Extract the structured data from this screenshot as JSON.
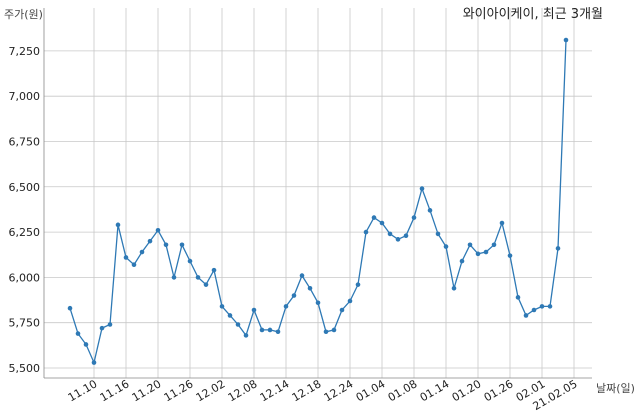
{
  "chart_data": {
    "type": "line",
    "title": "와이아이케이, 최근 3개월",
    "ylabel": "주가(원)",
    "xlabel": "날짜(일)",
    "ylim": [
      5500,
      7350
    ],
    "yticks": [
      5500,
      5750,
      6000,
      6250,
      6500,
      6750,
      7000,
      7250
    ],
    "ytick_labels": [
      "5,500",
      "5,750",
      "6,000",
      "6,250",
      "6,500",
      "6,750",
      "7,000",
      "7,250"
    ],
    "xtick_labels": [
      {
        "index": 3,
        "label": "11.10"
      },
      {
        "index": 7,
        "label": "11.16"
      },
      {
        "index": 11,
        "label": "11.20"
      },
      {
        "index": 15,
        "label": "11.26"
      },
      {
        "index": 19,
        "label": "12.02"
      },
      {
        "index": 23,
        "label": "12.08"
      },
      {
        "index": 27,
        "label": "12.14"
      },
      {
        "index": 31,
        "label": "12.18"
      },
      {
        "index": 35,
        "label": "12.24"
      },
      {
        "index": 39,
        "label": "01.04"
      },
      {
        "index": 43,
        "label": "01.08"
      },
      {
        "index": 47,
        "label": "01.14"
      },
      {
        "index": 51,
        "label": "01.20"
      },
      {
        "index": 55,
        "label": "01.26"
      },
      {
        "index": 59,
        "label": "02.01"
      },
      {
        "index": 63,
        "label": "21.02.05"
      }
    ],
    "grid": true,
    "series": [
      {
        "values": [
          5830,
          5690,
          5630,
          5530,
          5720,
          5740,
          6290,
          6110,
          6070,
          6140,
          6200,
          6260,
          6180,
          6000,
          6180,
          6090,
          6000,
          5960,
          6040,
          5840,
          5790,
          5740,
          5680,
          5820,
          5710,
          5710,
          5700,
          5840,
          5900,
          6010,
          5940,
          5860,
          5700,
          5710,
          5820,
          5870,
          5960,
          6250,
          6330,
          6300,
          6240,
          6210,
          6230,
          6330,
          6490,
          6370,
          6240,
          6170,
          5940,
          6090,
          6180,
          6130,
          6140,
          6180,
          6300,
          6120,
          5890,
          5790,
          5820,
          5840,
          5840,
          6160,
          7310
        ]
      }
    ]
  }
}
